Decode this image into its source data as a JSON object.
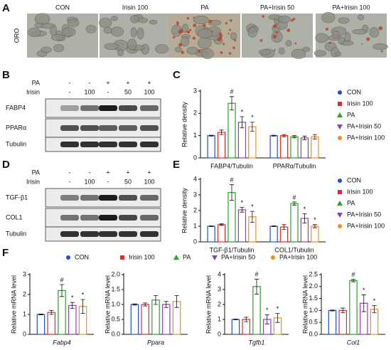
{
  "figure": {
    "panel_labels": [
      "A",
      "B",
      "C",
      "D",
      "E",
      "F"
    ],
    "images": {
      "row_label": "ORO",
      "labels": [
        "CON",
        "Irisin 100",
        "PA",
        "PA+Irisin 50",
        "PA+Irisin 100"
      ]
    },
    "blots": [
      {
        "conditions": [
          {
            "name": "PA",
            "values": [
              "-",
              "-",
              "+",
              "+",
              "+"
            ]
          },
          {
            "name": "Irisin",
            "values": [
              "-",
              "100",
              "-",
              "50",
              "100"
            ]
          }
        ],
        "proteins": [
          "FABP4",
          "PPARα",
          "Tubulin"
        ]
      },
      {
        "conditions": [
          {
            "name": "PA",
            "values": [
              "-",
              "-",
              "+",
              "+",
              "+"
            ]
          },
          {
            "name": "Irisin",
            "values": [
              "-",
              "100",
              "-",
              "50",
              "100"
            ]
          }
        ],
        "proteins": [
          "TGF-β1",
          "COL1",
          "Tubulin"
        ]
      }
    ]
  },
  "chart_data": [
    {
      "type": "bar",
      "ylabel": "Relative density",
      "categories": [
        "FABP4/Tubulin",
        "PPARα/Tubulin"
      ],
      "ylim": [
        0,
        3
      ],
      "yticks": [
        0,
        1,
        2,
        3
      ],
      "legend": "right",
      "series": [
        {
          "name": "CON",
          "color": "#1f4fc8",
          "marker": "circle",
          "values": [
            1.0,
            1.0
          ],
          "errors": [
            0.02,
            0.02
          ],
          "significance": [
            null,
            null
          ]
        },
        {
          "name": "Irisin 100",
          "color": "#e8262a",
          "marker": "square",
          "values": [
            1.15,
            1.0
          ],
          "errors": [
            0.1,
            0.05
          ],
          "significance": [
            null,
            null
          ]
        },
        {
          "name": "PA",
          "color": "#2ca02c",
          "marker": "triangle-up",
          "values": [
            2.45,
            0.95
          ],
          "errors": [
            0.3,
            0.05
          ],
          "significance": [
            "#",
            null
          ]
        },
        {
          "name": "PA+Irisin 50",
          "color": "#8b3fb5",
          "marker": "triangle-down",
          "values": [
            1.6,
            0.9
          ],
          "errors": [
            0.25,
            0.08
          ],
          "significance": [
            "*",
            null
          ]
        },
        {
          "name": "PA+Irisin 100",
          "color": "#f28e1c",
          "marker": "circle",
          "values": [
            1.4,
            0.95
          ],
          "errors": [
            0.2,
            0.1
          ],
          "significance": [
            "*",
            null
          ]
        }
      ]
    },
    {
      "type": "bar",
      "ylabel": "Relative density",
      "categories": [
        "TGF-β1/Tubulin",
        "COL1/Tubulin"
      ],
      "ylim": [
        0,
        4
      ],
      "yticks": [
        0,
        1,
        2,
        3,
        4
      ],
      "legend": "right",
      "series": [
        {
          "name": "CON",
          "color": "#1f4fc8",
          "marker": "circle",
          "values": [
            1.0,
            1.0
          ],
          "errors": [
            0.02,
            0.02
          ],
          "significance": [
            null,
            null
          ]
        },
        {
          "name": "Irisin 100",
          "color": "#e8262a",
          "marker": "square",
          "values": [
            1.1,
            0.95
          ],
          "errors": [
            0.05,
            0.15
          ],
          "significance": [
            null,
            null
          ]
        },
        {
          "name": "PA",
          "color": "#2ca02c",
          "marker": "triangle-up",
          "values": [
            3.15,
            2.45
          ],
          "errors": [
            0.5,
            0.1
          ],
          "significance": [
            "#",
            "#"
          ]
        },
        {
          "name": "PA+Irisin 50",
          "color": "#8b3fb5",
          "marker": "triangle-down",
          "values": [
            2.05,
            1.5
          ],
          "errors": [
            0.15,
            0.3
          ],
          "significance": [
            "*",
            "*"
          ]
        },
        {
          "name": "PA+Irisin 100",
          "color": "#f28e1c",
          "marker": "circle",
          "values": [
            1.6,
            1.0
          ],
          "errors": [
            0.35,
            0.1
          ],
          "significance": [
            "*",
            "*"
          ]
        }
      ]
    },
    {
      "type": "bar",
      "ylabel": "Relative mRNA level",
      "categories": [
        "Fabp4"
      ],
      "category_style": "italic",
      "ylim": [
        0,
        3
      ],
      "yticks": [
        0,
        1,
        2,
        3
      ],
      "legend": "top",
      "series": [
        {
          "name": "CON",
          "color": "#1f4fc8",
          "marker": "circle",
          "values": [
            1.0
          ],
          "errors": [
            0.02
          ],
          "significance": [
            null
          ]
        },
        {
          "name": "Irisin 100",
          "color": "#e8262a",
          "marker": "square",
          "values": [
            1.1
          ],
          "errors": [
            0.1
          ],
          "significance": [
            null
          ]
        },
        {
          "name": "PA",
          "color": "#2ca02c",
          "marker": "triangle-up",
          "values": [
            2.2
          ],
          "errors": [
            0.3
          ],
          "significance": [
            "#"
          ]
        },
        {
          "name": "PA+Irisin 50",
          "color": "#8b3fb5",
          "marker": "triangle-down",
          "values": [
            1.45
          ],
          "errors": [
            0.15
          ],
          "significance": [
            "*"
          ]
        },
        {
          "name": "PA+Irisin 100",
          "color": "#f28e1c",
          "marker": "circle",
          "values": [
            1.4
          ],
          "errors": [
            0.35
          ],
          "significance": [
            "*"
          ]
        }
      ]
    },
    {
      "type": "bar",
      "ylabel": "Relative mRNA level",
      "categories": [
        "Ppara"
      ],
      "category_style": "italic",
      "ylim": [
        0,
        2
      ],
      "yticks": [
        {
          "value": 0,
          "label": "0.0"
        },
        0.5,
        {
          "value": 1,
          "label": "1.0"
        },
        1.5,
        {
          "value": 2,
          "label": "2.0"
        }
      ],
      "series": [
        {
          "color": "#1f4fc8",
          "values": [
            1.0
          ],
          "errors": [
            0.02
          ],
          "significance": [
            null
          ]
        },
        {
          "color": "#e8262a",
          "values": [
            1.0
          ],
          "errors": [
            0.05
          ],
          "significance": [
            null
          ]
        },
        {
          "color": "#2ca02c",
          "values": [
            1.15
          ],
          "errors": [
            0.15
          ],
          "significance": [
            null
          ]
        },
        {
          "color": "#8b3fb5",
          "values": [
            1.0
          ],
          "errors": [
            0.1
          ],
          "significance": [
            null
          ]
        },
        {
          "color": "#f28e1c",
          "values": [
            1.1
          ],
          "errors": [
            0.2
          ],
          "significance": [
            null
          ]
        }
      ]
    },
    {
      "type": "bar",
      "ylabel": "Relative mRNA level",
      "categories": [
        "Tgfb1"
      ],
      "category_style": "italic",
      "ylim": [
        0,
        4
      ],
      "yticks": [
        0,
        1,
        2,
        3,
        4
      ],
      "series": [
        {
          "color": "#1f4fc8",
          "values": [
            1.0
          ],
          "errors": [
            0.02
          ],
          "significance": [
            null
          ]
        },
        {
          "color": "#e8262a",
          "values": [
            1.0
          ],
          "errors": [
            0.15
          ],
          "significance": [
            null
          ]
        },
        {
          "color": "#2ca02c",
          "values": [
            3.2
          ],
          "errors": [
            0.5
          ],
          "significance": [
            "#"
          ]
        },
        {
          "color": "#8b3fb5",
          "values": [
            1.0
          ],
          "errors": [
            0.3
          ],
          "significance": [
            "*"
          ]
        },
        {
          "color": "#f28e1c",
          "values": [
            1.1
          ],
          "errors": [
            0.3
          ],
          "significance": [
            "*"
          ]
        }
      ]
    },
    {
      "type": "bar",
      "ylabel": "Relative mRNA level",
      "categories": [
        "Col1"
      ],
      "category_style": "italic",
      "ylim": [
        0,
        2.5
      ],
      "yticks": [
        {
          "value": 0,
          "label": "0.0"
        },
        0.5,
        {
          "value": 1,
          "label": "1.0"
        },
        1.5,
        {
          "value": 2,
          "label": "2.0"
        },
        2.5
      ],
      "series": [
        {
          "color": "#1f4fc8",
          "values": [
            1.0
          ],
          "errors": [
            0.02
          ],
          "significance": [
            null
          ]
        },
        {
          "color": "#e8262a",
          "values": [
            1.0
          ],
          "errors": [
            0.1
          ],
          "significance": [
            null
          ]
        },
        {
          "color": "#2ca02c",
          "values": [
            2.25
          ],
          "errors": [
            0.05
          ],
          "significance": [
            "#"
          ]
        },
        {
          "color": "#8b3fb5",
          "values": [
            1.3
          ],
          "errors": [
            0.35
          ],
          "significance": [
            "*"
          ]
        },
        {
          "color": "#f28e1c",
          "values": [
            1.05
          ],
          "errors": [
            0.15
          ],
          "significance": [
            "*"
          ]
        }
      ]
    }
  ]
}
